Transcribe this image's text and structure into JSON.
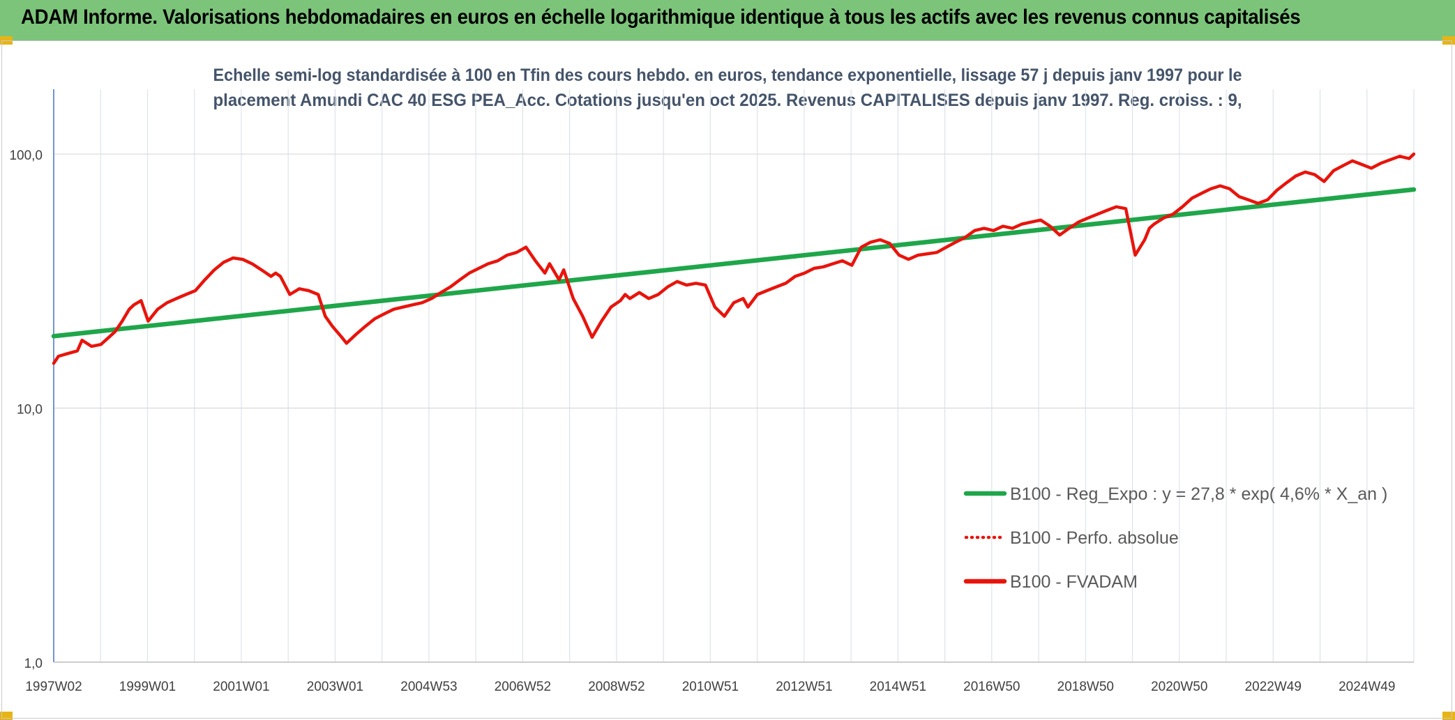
{
  "header": {
    "title": "ADAM Informe. Valorisations hebdomadaires en euros en échelle logarithmique identique à tous les actifs avec les revenus connus capitalisés",
    "bg_color": "#7cc47a"
  },
  "chart_data": {
    "type": "line",
    "title_lines": [
      "Echelle semi-log standardisée à 100 en Tfin des cours hebdo. en euros, tendance exponentielle, lissage 57 j depuis janv 1997 pour le",
      "placement Amundi CAC 40 ESG PEA_Acc. Cotations jusqu'en oct 2025. Revenus CAPITALISES depuis janv 1997. Reg. croiss. : 9,"
    ],
    "y_scale": "log",
    "ylim": [
      1,
      180
    ],
    "y_ticks": [
      1,
      10,
      100
    ],
    "y_tick_labels": [
      "1,0",
      "10,0",
      "100,0"
    ],
    "xlim": [
      1997.0,
      2025.8
    ],
    "x_tick_labels": [
      "1997W02",
      "1999W01",
      "2001W01",
      "2003W01",
      "2004W53",
      "2006W52",
      "2008W52",
      "2010W51",
      "2012W51",
      "2014W51",
      "2016W50",
      "2018W50",
      "2020W50",
      "2022W49",
      "2024W49"
    ],
    "grid": true,
    "legend_position": "bottom-right",
    "series": [
      {
        "name": "B100 - Reg_Expo : y = 27,8 * exp( 4,6% *  X_an )",
        "style": "solid",
        "color": "#1fa64a",
        "x": [
          1997.0,
          2025.8
        ],
        "y": [
          19.2,
          72.5
        ]
      },
      {
        "name": "B100 - Perfo. absolue",
        "style": "dotted",
        "color": "#e8140c",
        "x": [],
        "y": []
      },
      {
        "name": "B100 - FVADAM",
        "style": "solid",
        "color": "#e8140c",
        "x": [
          1997.0,
          1997.1,
          1997.3,
          1997.5,
          1997.6,
          1997.8,
          1998.0,
          1998.1,
          1998.3,
          1998.45,
          1998.6,
          1998.7,
          1998.85,
          1999.0,
          1999.2,
          1999.4,
          1999.6,
          1999.8,
          2000.0,
          2000.2,
          2000.4,
          2000.6,
          2000.8,
          2001.0,
          2001.2,
          2001.4,
          2001.6,
          2001.7,
          2001.8,
          2002.0,
          2002.2,
          2002.4,
          2002.6,
          2002.75,
          2002.9,
          2003.1,
          2003.2,
          2003.4,
          2003.6,
          2003.8,
          2004.0,
          2004.2,
          2004.4,
          2004.6,
          2004.8,
          2005.0,
          2005.2,
          2005.4,
          2005.6,
          2005.8,
          2006.0,
          2006.2,
          2006.4,
          2006.6,
          2006.8,
          2007.0,
          2007.2,
          2007.4,
          2007.5,
          2007.7,
          2007.8,
          2008.0,
          2008.2,
          2008.4,
          2008.6,
          2008.8,
          2009.0,
          2009.1,
          2009.2,
          2009.4,
          2009.6,
          2009.8,
          2010.0,
          2010.2,
          2010.4,
          2010.6,
          2010.8,
          2011.0,
          2011.2,
          2011.4,
          2011.6,
          2011.7,
          2011.9,
          2012.1,
          2012.3,
          2012.5,
          2012.7,
          2012.9,
          2013.1,
          2013.3,
          2013.5,
          2013.7,
          2013.9,
          2014.1,
          2014.3,
          2014.5,
          2014.7,
          2014.9,
          2015.1,
          2015.3,
          2015.5,
          2015.7,
          2015.9,
          2016.1,
          2016.3,
          2016.5,
          2016.7,
          2016.9,
          2017.1,
          2017.3,
          2017.5,
          2017.7,
          2017.9,
          2018.1,
          2018.3,
          2018.5,
          2018.7,
          2018.9,
          2019.1,
          2019.3,
          2019.5,
          2019.7,
          2019.9,
          2020.1,
          2020.2,
          2020.3,
          2020.5,
          2020.7,
          2020.9,
          2021.1,
          2021.3,
          2021.5,
          2021.7,
          2021.9,
          2022.1,
          2022.3,
          2022.5,
          2022.7,
          2022.9,
          2023.1,
          2023.3,
          2023.5,
          2023.7,
          2023.9,
          2024.1,
          2024.3,
          2024.5,
          2024.7,
          2024.9,
          2025.1,
          2025.3,
          2025.5,
          2025.7,
          2025.8
        ],
        "y": [
          15.0,
          16.0,
          16.4,
          16.8,
          18.5,
          17.5,
          17.8,
          18.5,
          20.0,
          22.0,
          24.5,
          25.5,
          26.5,
          22.0,
          24.5,
          26.0,
          27.0,
          28.0,
          29.0,
          32.0,
          35.0,
          37.5,
          39.0,
          38.5,
          37.0,
          35.0,
          33.0,
          34.0,
          33.0,
          28.0,
          29.5,
          29.0,
          28.0,
          23.0,
          21.0,
          19.0,
          18.0,
          19.5,
          21.0,
          22.5,
          23.5,
          24.5,
          25.0,
          25.5,
          26.0,
          27.0,
          28.5,
          30.0,
          32.0,
          34.0,
          35.5,
          37.0,
          38.0,
          40.0,
          41.0,
          43.0,
          38.0,
          34.0,
          37.0,
          32.0,
          35.0,
          27.0,
          23.0,
          19.0,
          22.0,
          25.0,
          26.5,
          28.0,
          27.0,
          28.5,
          27.0,
          28.0,
          30.0,
          31.5,
          30.5,
          31.0,
          30.5,
          25.0,
          23.0,
          26.0,
          27.0,
          25.0,
          28.0,
          29.0,
          30.0,
          31.0,
          33.0,
          34.0,
          35.5,
          36.0,
          37.0,
          38.0,
          36.5,
          43.0,
          45.0,
          46.0,
          44.5,
          40.0,
          38.5,
          40.0,
          40.5,
          41.0,
          43.0,
          45.0,
          47.0,
          50.0,
          51.0,
          50.0,
          52.0,
          51.0,
          53.0,
          54.0,
          55.0,
          52.0,
          48.0,
          51.0,
          54.0,
          56.0,
          58.0,
          60.0,
          62.0,
          61.0,
          40.0,
          46.0,
          51.0,
          53.0,
          56.0,
          58.0,
          62.0,
          67.0,
          70.0,
          73.0,
          75.0,
          73.0,
          68.0,
          66.0,
          64.0,
          66.0,
          72.0,
          77.0,
          82.0,
          85.0,
          83.0,
          78.0,
          86.0,
          90.0,
          94.0,
          91.0,
          88.0,
          92.0,
          95.0,
          98.0,
          96.0,
          100.0
        ]
      }
    ]
  }
}
